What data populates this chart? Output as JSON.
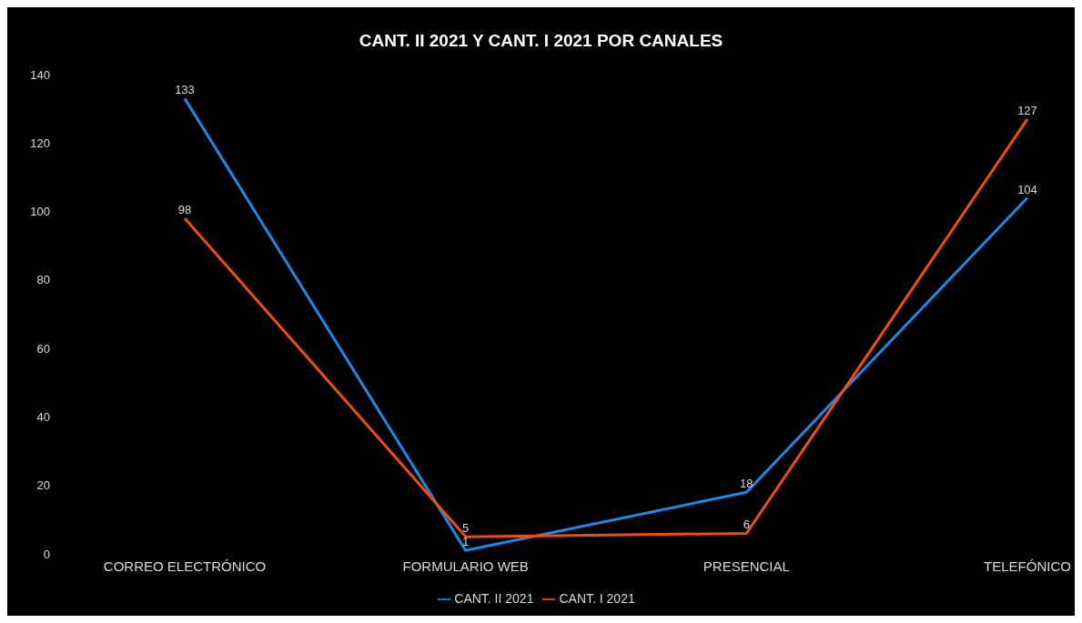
{
  "chart_data": {
    "type": "line",
    "title": "CANT. II 2021 Y CANT. I 2021 POR CANALES",
    "categories": [
      "CORREO ELECTRÓNICO",
      "FORMULARIO WEB",
      "PRESENCIAL",
      "TELEFÓNICO"
    ],
    "series": [
      {
        "name": "CANT. II 2021",
        "color": "#1e88e5",
        "values": [
          133,
          1,
          18,
          104
        ]
      },
      {
        "name": "CANT. I 2021",
        "color": "#f04e0f",
        "values": [
          98,
          5,
          6,
          127
        ]
      }
    ],
    "ylim": [
      0,
      140
    ],
    "yticks": [
      0,
      20,
      40,
      60,
      80,
      100,
      120,
      140
    ],
    "data_labels": true,
    "legend": "bottom",
    "marker": "none",
    "line_style": "solid"
  }
}
